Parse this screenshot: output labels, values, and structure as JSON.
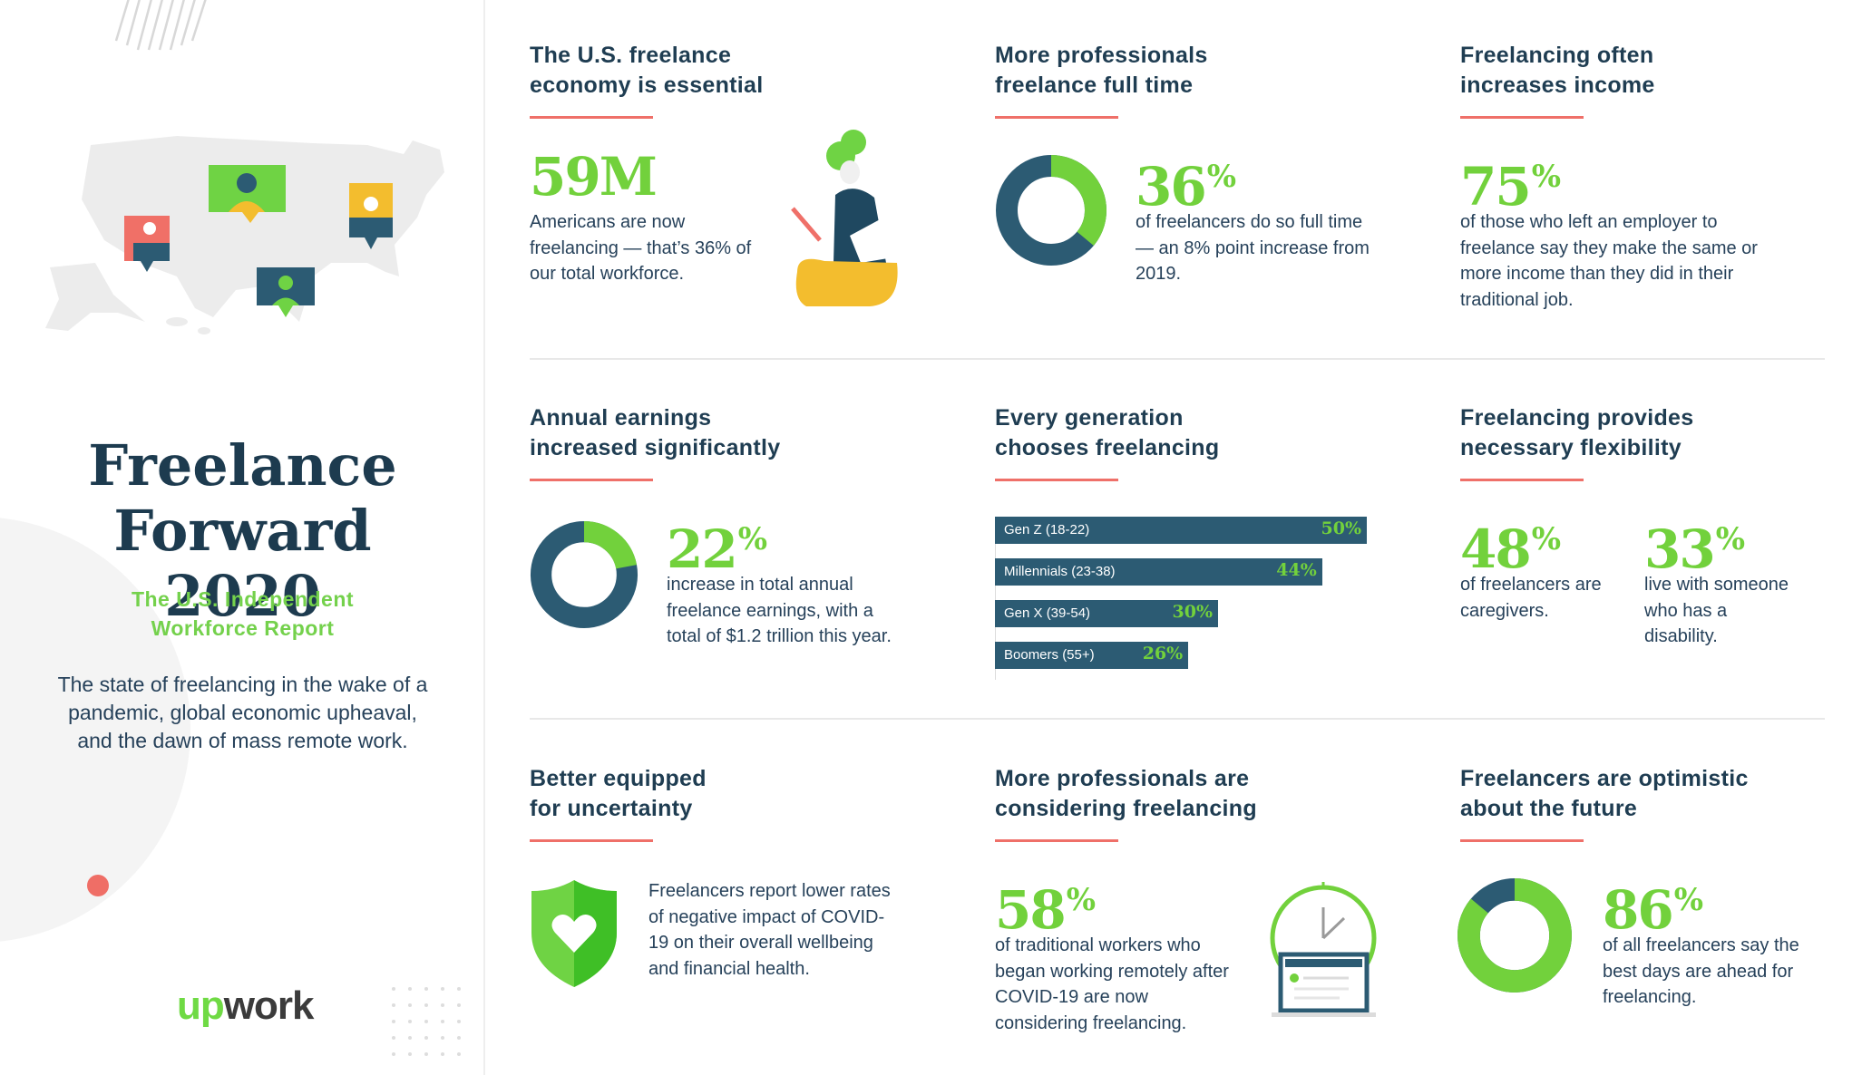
{
  "title_line1": "Freelance",
  "title_line2": "Forward 2020",
  "subtitle_line1": "The U.S. Independent",
  "subtitle_line2": "Workforce Report",
  "description": "The state of freelancing in the wake of a pandemic, global economic upheaval, and the dawn of mass remote work.",
  "logo": {
    "up": "up",
    "work": "work"
  },
  "colors": {
    "green": "#72d13c",
    "navy": "#2c5b73",
    "red": "#ef7069",
    "yellow": "#f3bd2e",
    "text": "#26415a"
  },
  "cards": {
    "essential": {
      "heading1": "The U.S. freelance",
      "heading2": "economy is essential",
      "stat": "59M",
      "stat_suffix": "",
      "text": "Americans are now freelancing — that’s 36% of our total workforce.",
      "icon": "woman-with-tablet-illustration"
    },
    "fulltime": {
      "heading1": "More professionals",
      "heading2": "freelance full time",
      "stat": "36",
      "stat_suffix": "%",
      "text": "of freelancers do so full time — an 8% point increase from 2019.",
      "donut_fraction": 0.36
    },
    "income": {
      "heading1": "Freelancing often",
      "heading2": "increases income",
      "stat": "75",
      "stat_suffix": "%",
      "text": "of those who left an employer to freelance say they make the same or more income than they did in their traditional job."
    },
    "earnings": {
      "heading1": "Annual earnings",
      "heading2": "increased significantly",
      "stat": "22",
      "stat_suffix": "%",
      "text": "increase in total annual freelance earnings, with a total of $1.2 trillion this year.",
      "donut_fraction": 0.22
    },
    "generation": {
      "heading1": "Every generation",
      "heading2": "chooses freelancing"
    },
    "flexibility": {
      "heading1": "Freelancing provides",
      "heading2": "necessary flexibility",
      "stat_a": "48",
      "suffix_a": "%",
      "text_a": "of freelancers are caregivers.",
      "stat_b": "33",
      "suffix_b": "%",
      "text_b": "live with someone who has a disability."
    },
    "uncertainty": {
      "heading1": "Better equipped",
      "heading2": "for uncertainty",
      "text": "Freelancers report lower rates of negative impact of COVID-19 on their overall wellbeing and financial health.",
      "icon": "shield-heart-icon"
    },
    "considering": {
      "heading1": "More professionals are",
      "heading2": "considering freelancing",
      "stat": "58",
      "stat_suffix": "%",
      "text": "of traditional workers who began working remotely after COVID-19 are now considering freelancing.",
      "icon": "clock-laptop-illustration"
    },
    "optimistic": {
      "heading1": "Freelancers are optimistic",
      "heading2": "about the future",
      "stat": "86",
      "stat_suffix": "%",
      "text": "of all freelancers say the best days are ahead for freelancing.",
      "donut_fraction": 0.86
    }
  },
  "chart_data": {
    "type": "bar",
    "orientation": "horizontal",
    "categories": [
      "Gen Z (18-22)",
      "Millennials (23-38)",
      "Gen X (39-54)",
      "Boomers (55+)"
    ],
    "values": [
      50,
      44,
      30,
      26
    ],
    "value_labels": [
      "50%",
      "44%",
      "30%",
      "26%"
    ],
    "unit": "%",
    "xlim": [
      0,
      50
    ],
    "grid": false,
    "legend": "none"
  }
}
